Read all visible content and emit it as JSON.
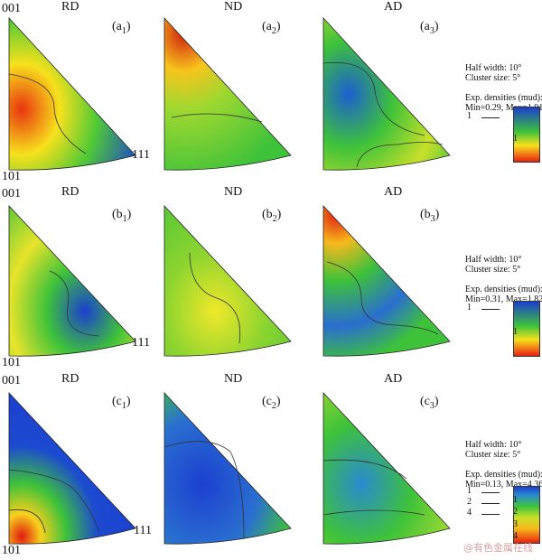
{
  "columns": [
    "RD",
    "ND",
    "AD"
  ],
  "corners": {
    "top": "001",
    "bottom_left": "101",
    "bottom_right": "111"
  },
  "rows": [
    {
      "labels": [
        [
          "a",
          "1"
        ],
        [
          "a",
          "2"
        ],
        [
          "a",
          "3"
        ]
      ],
      "legend": {
        "half_width": "Half width: 10°",
        "cluster": "Cluster size: 5°",
        "densities_title": "Exp. densities (mud):",
        "range": "Min=0.29, Max=1.91",
        "levels": [
          "1"
        ],
        "scale_ticks": [
          "1"
        ]
      }
    },
    {
      "labels": [
        [
          "b",
          "1"
        ],
        [
          "b",
          "2"
        ],
        [
          "b",
          "3"
        ]
      ],
      "legend": {
        "half_width": "Half width: 10°",
        "cluster": "Cluster size: 5°",
        "densities_title": "Exp. densities (mud):",
        "range": "Min=0.31, Max=1.82",
        "levels": [
          "1"
        ],
        "scale_ticks": [
          "1"
        ]
      }
    },
    {
      "labels": [
        [
          "c",
          "1"
        ],
        [
          "c",
          "2"
        ],
        [
          "c",
          "3"
        ]
      ],
      "legend": {
        "half_width": "Half width: 10°",
        "cluster": "Cluster size: 5°",
        "densities_title": "Exp. densities (mud):",
        "range": "Min=0.13, Max=4.36",
        "levels": [
          "1",
          "2",
          "4"
        ],
        "scale_ticks": [
          "1",
          "2",
          "3",
          "4"
        ]
      }
    }
  ],
  "watermark": "@有色金属在线",
  "colors": {
    "low": "#e8200f",
    "mid": "#f7f21c",
    "green": "#2fbf3a",
    "high": "#1c3fd0"
  }
}
